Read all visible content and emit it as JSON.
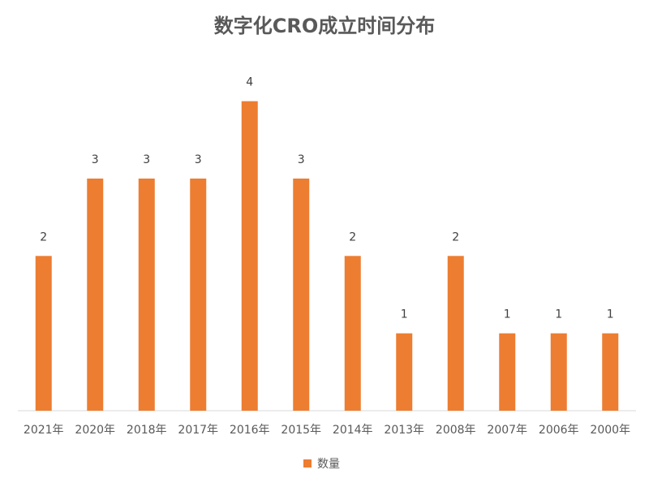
{
  "chart_data": {
    "type": "bar",
    "title": "数字化CRO成立时间分布",
    "categories": [
      "2021年",
      "2020年",
      "2018年",
      "2017年",
      "2016年",
      "2015年",
      "2014年",
      "2013年",
      "2008年",
      "2007年",
      "2006年",
      "2000年"
    ],
    "series": [
      {
        "name": "数量",
        "color": "#ed7d31",
        "values": [
          2,
          3,
          3,
          3,
          4,
          3,
          2,
          1,
          2,
          1,
          1,
          1
        ]
      }
    ],
    "ylim": [
      0,
      4.5
    ],
    "grid": false,
    "legend": "bottom"
  }
}
